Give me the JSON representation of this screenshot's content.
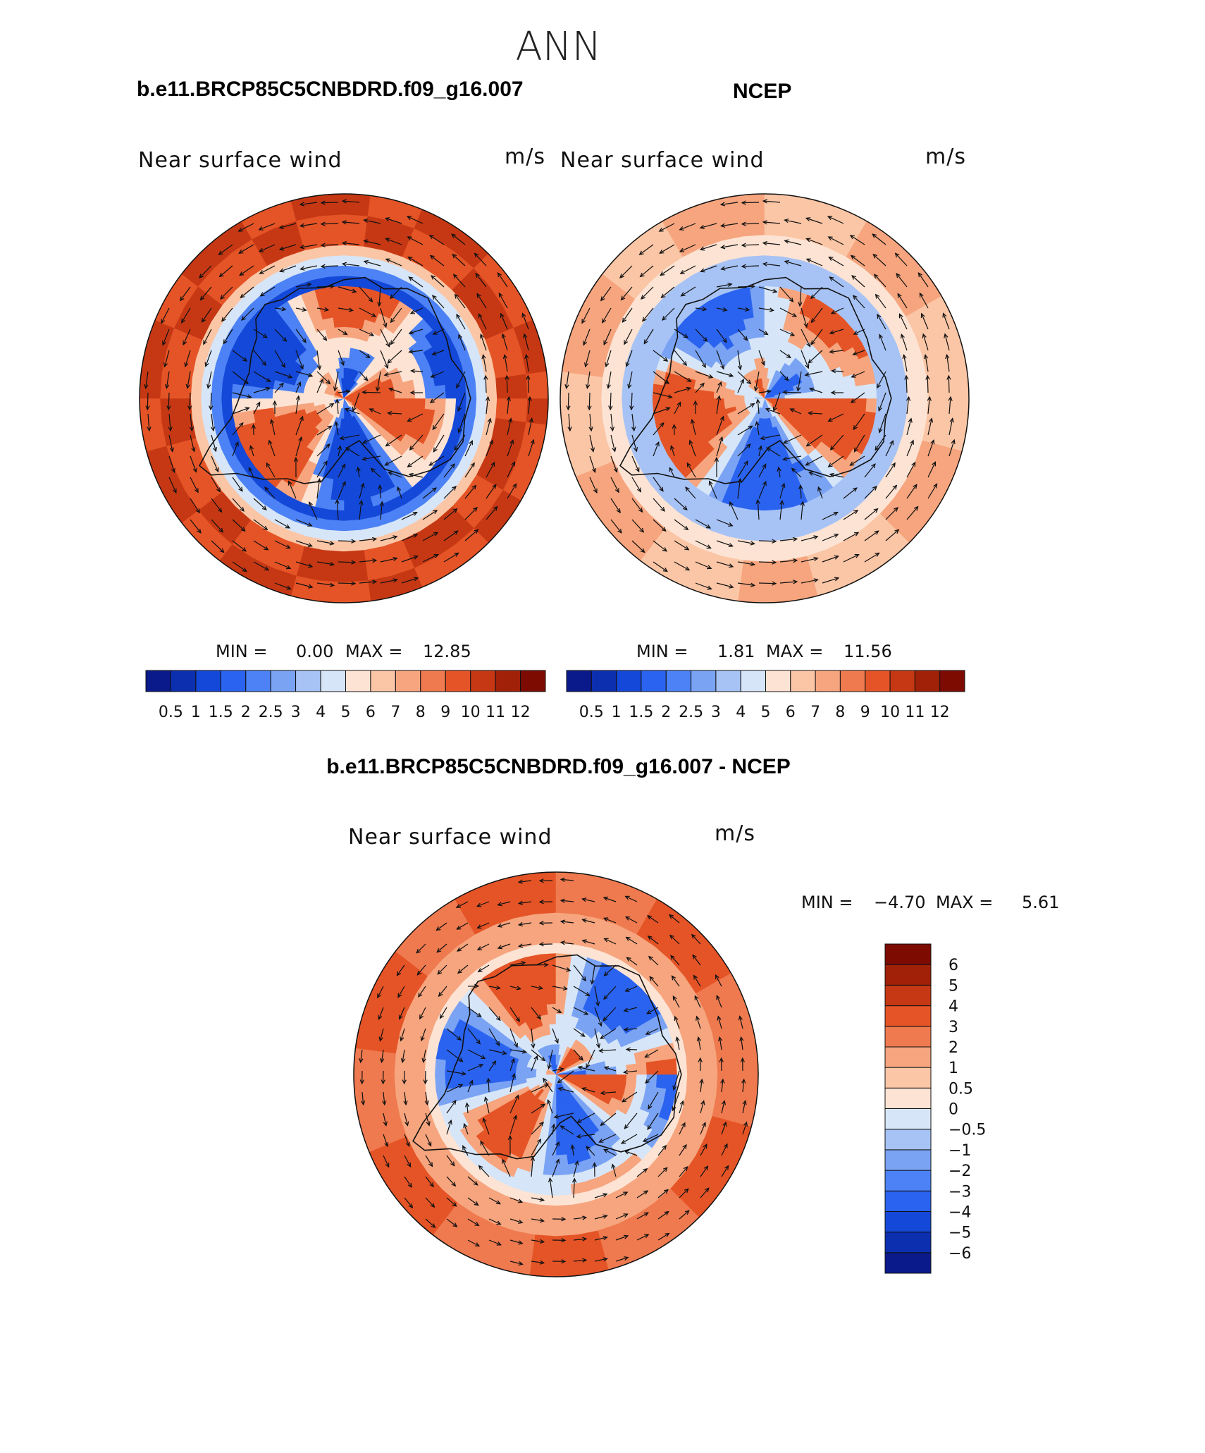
{
  "page": {
    "season": "ANN"
  },
  "panels": {
    "model": {
      "title": "b.e11.BRCP85C5CNBDRD.f09_g16.007",
      "variable": "Near surface wind",
      "units": "m/s",
      "min_label": "MIN =",
      "min": "0.00",
      "max_label": "MAX =",
      "max": "12.85"
    },
    "obs": {
      "title": "NCEP",
      "variable": "Near surface wind",
      "units": "m/s",
      "min_label": "MIN =",
      "min": "1.81",
      "max_label": "MAX =",
      "max": "11.56"
    },
    "diff": {
      "title": "b.e11.BRCP85C5CNBDRD.f09_g16.007 - NCEP",
      "variable": "Near surface wind",
      "units": "m/s",
      "min_label": "MIN =",
      "min": "−4.70",
      "max_label": "MAX =",
      "max": "5.61"
    }
  },
  "chart_data": [
    {
      "type": "heatmap",
      "projection": "south-polar stereographic",
      "title": "b.e11.BRCP85C5CNBDRD.f09_g16.007",
      "field": "Near surface wind speed with wind vectors",
      "units": "m/s",
      "min": 0.0,
      "max": 12.85,
      "levels": [
        0.5,
        1,
        1.5,
        2,
        2.5,
        3,
        4,
        5,
        6,
        7,
        8,
        9,
        10,
        11,
        12
      ],
      "level_labels": [
        "0.5",
        "1",
        "1.5",
        "2",
        "2.5",
        "3",
        "4",
        "5",
        "6",
        "7",
        "8",
        "9",
        "10",
        "11",
        "12"
      ],
      "colors": [
        "#0a1a8a",
        "#0c2fb0",
        "#1448d8",
        "#2a63ef",
        "#4c82f5",
        "#7aa3f4",
        "#a7c3f5",
        "#d6e6f8",
        "#fde3d3",
        "#fbc6a6",
        "#f6a57e",
        "#ef7a4f",
        "#e55426",
        "#c63814",
        "#a12008",
        "#7e0b02"
      ]
    },
    {
      "type": "heatmap",
      "projection": "south-polar stereographic",
      "title": "NCEP",
      "field": "Near surface wind speed with wind vectors",
      "units": "m/s",
      "min": 1.81,
      "max": 11.56,
      "levels": [
        0.5,
        1,
        1.5,
        2,
        2.5,
        3,
        4,
        5,
        6,
        7,
        8,
        9,
        10,
        11,
        12
      ],
      "level_labels": [
        "0.5",
        "1",
        "1.5",
        "2",
        "2.5",
        "3",
        "4",
        "5",
        "6",
        "7",
        "8",
        "9",
        "10",
        "11",
        "12"
      ],
      "colors": [
        "#0a1a8a",
        "#0c2fb0",
        "#1448d8",
        "#2a63ef",
        "#4c82f5",
        "#7aa3f4",
        "#a7c3f5",
        "#d6e6f8",
        "#fde3d3",
        "#fbc6a6",
        "#f6a57e",
        "#ef7a4f",
        "#e55426",
        "#c63814",
        "#a12008",
        "#7e0b02"
      ]
    },
    {
      "type": "heatmap",
      "projection": "south-polar stereographic",
      "title": "b.e11.BRCP85C5CNBDRD.f09_g16.007 - NCEP",
      "field": "Near surface wind difference with wind vectors",
      "units": "m/s",
      "min": -4.7,
      "max": 5.61,
      "levels": [
        -6,
        -5,
        -4,
        -3,
        -2,
        -1,
        -0.5,
        0,
        0.5,
        1,
        2,
        3,
        4,
        5,
        6
      ],
      "level_labels": [
        "−6",
        "−5",
        "−4",
        "−3",
        "−2",
        "−1",
        "−0.5",
        "0",
        "0.5",
        "1",
        "2",
        "3",
        "4",
        "5",
        "6"
      ],
      "colors": [
        "#0a1a8a",
        "#0c2fb0",
        "#1448d8",
        "#2a63ef",
        "#4c82f5",
        "#7aa3f4",
        "#a7c3f5",
        "#d6e6f8",
        "#fde3d3",
        "#fbc6a6",
        "#f6a57e",
        "#ef7a4f",
        "#e55426",
        "#c63814",
        "#a12008",
        "#7e0b02"
      ]
    }
  ]
}
